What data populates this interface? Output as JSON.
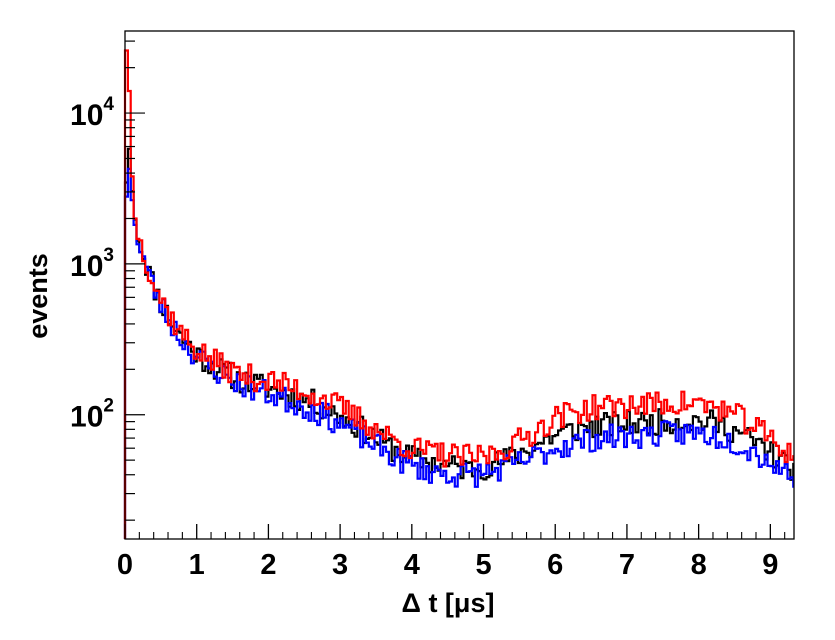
{
  "chart_data": {
    "type": "histogram-step",
    "xlabel": "Δ t [μs]",
    "ylabel": "events",
    "x_range": [
      0,
      9.33
    ],
    "y_range": [
      15,
      35000
    ],
    "y_scale": "log",
    "grid": false,
    "legend": "none",
    "x_ticks": [
      {
        "value": 0,
        "label": "0"
      },
      {
        "value": 1,
        "label": "1"
      },
      {
        "value": 2,
        "label": "2"
      },
      {
        "value": 3,
        "label": "3"
      },
      {
        "value": 4,
        "label": "4"
      },
      {
        "value": 5,
        "label": "5"
      },
      {
        "value": 6,
        "label": "6"
      },
      {
        "value": 7,
        "label": "7"
      },
      {
        "value": 8,
        "label": "8"
      },
      {
        "value": 9,
        "label": "9"
      }
    ],
    "y_major_ticks": [
      {
        "value": 100,
        "base": "10",
        "exp": "2"
      },
      {
        "value": 1000,
        "base": "10",
        "exp": "3"
      },
      {
        "value": 10000,
        "base": "10",
        "exp": "4"
      }
    ],
    "bin_width": 0.04,
    "series": [
      {
        "color": "#000000",
        "points": [
          [
            0.0,
            1500
          ],
          [
            0.04,
            8000
          ],
          [
            0.08,
            4200
          ],
          [
            0.12,
            2200
          ],
          [
            0.2,
            1400
          ],
          [
            0.3,
            1000
          ],
          [
            0.4,
            720
          ],
          [
            0.5,
            560
          ],
          [
            0.6,
            450
          ],
          [
            0.7,
            380
          ],
          [
            0.8,
            320
          ],
          [
            0.9,
            285
          ],
          [
            1.0,
            255
          ],
          [
            1.2,
            215
          ],
          [
            1.4,
            190
          ],
          [
            1.6,
            170
          ],
          [
            1.8,
            160
          ],
          [
            2.0,
            150
          ],
          [
            2.2,
            140
          ],
          [
            2.4,
            130
          ],
          [
            2.6,
            122
          ],
          [
            2.8,
            110
          ],
          [
            3.0,
            98
          ],
          [
            3.2,
            86
          ],
          [
            3.4,
            75
          ],
          [
            3.6,
            65
          ],
          [
            3.8,
            57
          ],
          [
            4.0,
            52
          ],
          [
            4.2,
            49
          ],
          [
            4.4,
            47
          ],
          [
            4.6,
            45
          ],
          [
            4.8,
            44
          ],
          [
            5.0,
            45
          ],
          [
            5.2,
            48
          ],
          [
            5.4,
            52
          ],
          [
            5.6,
            58
          ],
          [
            5.8,
            66
          ],
          [
            6.0,
            73
          ],
          [
            6.2,
            78
          ],
          [
            6.4,
            82
          ],
          [
            6.6,
            85
          ],
          [
            6.8,
            86
          ],
          [
            7.0,
            87
          ],
          [
            7.2,
            88
          ],
          [
            7.4,
            89
          ],
          [
            7.6,
            91
          ],
          [
            7.8,
            92
          ],
          [
            8.0,
            91
          ],
          [
            8.2,
            88
          ],
          [
            8.4,
            82
          ],
          [
            8.6,
            74
          ],
          [
            8.8,
            65
          ],
          [
            9.0,
            56
          ],
          [
            9.2,
            47
          ],
          [
            9.33,
            44
          ]
        ],
        "noise": 0.14,
        "seed": 11
      },
      {
        "color": "#0000ff",
        "points": [
          [
            0.0,
            1500
          ],
          [
            0.04,
            5200
          ],
          [
            0.08,
            3500
          ],
          [
            0.12,
            2000
          ],
          [
            0.2,
            1350
          ],
          [
            0.3,
            950
          ],
          [
            0.4,
            690
          ],
          [
            0.5,
            540
          ],
          [
            0.6,
            440
          ],
          [
            0.7,
            370
          ],
          [
            0.8,
            310
          ],
          [
            0.9,
            275
          ],
          [
            1.0,
            245
          ],
          [
            1.2,
            205
          ],
          [
            1.4,
            180
          ],
          [
            1.6,
            160
          ],
          [
            1.8,
            148
          ],
          [
            2.0,
            138
          ],
          [
            2.2,
            128
          ],
          [
            2.4,
            118
          ],
          [
            2.6,
            108
          ],
          [
            2.8,
            98
          ],
          [
            3.0,
            88
          ],
          [
            3.2,
            77
          ],
          [
            3.4,
            67
          ],
          [
            3.6,
            58
          ],
          [
            3.8,
            51
          ],
          [
            4.0,
            46
          ],
          [
            4.2,
            43
          ],
          [
            4.4,
            41
          ],
          [
            4.6,
            40
          ],
          [
            4.8,
            40
          ],
          [
            5.0,
            41
          ],
          [
            5.2,
            43
          ],
          [
            5.4,
            46
          ],
          [
            5.6,
            50
          ],
          [
            5.8,
            55
          ],
          [
            6.0,
            60
          ],
          [
            6.2,
            64
          ],
          [
            6.4,
            67
          ],
          [
            6.6,
            70
          ],
          [
            6.8,
            71
          ],
          [
            7.0,
            72
          ],
          [
            7.2,
            73
          ],
          [
            7.4,
            74
          ],
          [
            7.6,
            75
          ],
          [
            7.8,
            76
          ],
          [
            8.0,
            75
          ],
          [
            8.2,
            73
          ],
          [
            8.4,
            69
          ],
          [
            8.6,
            63
          ],
          [
            8.8,
            56
          ],
          [
            9.0,
            49
          ],
          [
            9.2,
            42
          ],
          [
            9.33,
            40
          ]
        ],
        "noise": 0.14,
        "seed": 23
      },
      {
        "color": "#ff0000",
        "points": [
          [
            0.0,
            1600
          ],
          [
            0.02,
            26000
          ],
          [
            0.06,
            14000
          ],
          [
            0.1,
            3800
          ],
          [
            0.14,
            2000
          ],
          [
            0.2,
            1450
          ],
          [
            0.3,
            1050
          ],
          [
            0.4,
            760
          ],
          [
            0.5,
            590
          ],
          [
            0.6,
            480
          ],
          [
            0.7,
            400
          ],
          [
            0.8,
            340
          ],
          [
            0.9,
            300
          ],
          [
            1.0,
            270
          ],
          [
            1.2,
            230
          ],
          [
            1.4,
            205
          ],
          [
            1.6,
            185
          ],
          [
            1.8,
            175
          ],
          [
            2.0,
            168
          ],
          [
            2.2,
            158
          ],
          [
            2.4,
            148
          ],
          [
            2.6,
            138
          ],
          [
            2.8,
            126
          ],
          [
            3.0,
            112
          ],
          [
            3.2,
            98
          ],
          [
            3.4,
            86
          ],
          [
            3.6,
            75
          ],
          [
            3.8,
            66
          ],
          [
            4.0,
            60
          ],
          [
            4.2,
            57
          ],
          [
            4.4,
            55
          ],
          [
            4.6,
            53
          ],
          [
            4.8,
            52
          ],
          [
            5.0,
            53
          ],
          [
            5.2,
            57
          ],
          [
            5.4,
            63
          ],
          [
            5.6,
            72
          ],
          [
            5.8,
            83
          ],
          [
            6.0,
            95
          ],
          [
            6.2,
            103
          ],
          [
            6.4,
            108
          ],
          [
            6.6,
            112
          ],
          [
            6.8,
            114
          ],
          [
            7.0,
            115
          ],
          [
            7.2,
            116
          ],
          [
            7.4,
            117
          ],
          [
            7.6,
            119
          ],
          [
            7.8,
            120
          ],
          [
            8.0,
            118
          ],
          [
            8.2,
            113
          ],
          [
            8.4,
            105
          ],
          [
            8.6,
            94
          ],
          [
            8.8,
            82
          ],
          [
            9.0,
            70
          ],
          [
            9.2,
            58
          ],
          [
            9.33,
            54
          ]
        ],
        "noise": 0.14,
        "seed": 37
      }
    ]
  }
}
